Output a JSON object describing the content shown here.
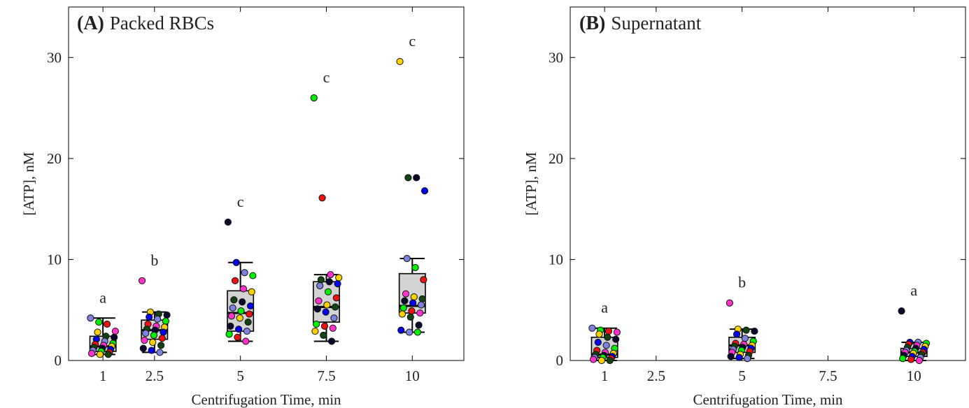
{
  "palette": [
    "#7c82dd",
    "#00ee00",
    "#ee1111",
    "#ff33cc",
    "#ffd000",
    "#114411",
    "#0a0a2e",
    "#0000ee"
  ],
  "chart_data": [
    {
      "type": "box-scatter",
      "panel_letter": "(A)",
      "title": "Packed RBCs",
      "xlabel": "Centrifugation Time, min",
      "ylabel": "[ATP], nM",
      "xticks": [
        "1",
        "2.5",
        "5",
        "7.5",
        "10"
      ],
      "yticks": [
        "0",
        "10",
        "20",
        "30"
      ],
      "xlim": [
        0,
        11.5
      ],
      "ylim": [
        0,
        35
      ],
      "groups": [
        {
          "x": 1,
          "label": "a",
          "box": {
            "whisker_low": 0.6,
            "q1": 0.9,
            "median": 1.4,
            "q3": 2.4,
            "whisker_high": 4.2
          },
          "points": [
            4.2,
            3.8,
            3.6,
            2.9,
            2.8,
            2.4,
            2.3,
            2.1,
            1.9,
            1.7,
            1.6,
            1.5,
            1.4,
            1.3,
            1.2,
            1.1,
            1.0,
            0.9,
            0.8,
            0.7,
            0.6,
            0.6
          ]
        },
        {
          "x": 2.5,
          "label": "b",
          "box": {
            "whisker_low": 0.8,
            "q1": 2.1,
            "median": 3.0,
            "q3": 4.0,
            "whisker_high": 4.8
          },
          "points": [
            7.9,
            4.8,
            4.6,
            4.5,
            4.3,
            4.1,
            3.9,
            3.6,
            3.4,
            3.3,
            3.1,
            3.0,
            2.8,
            2.7,
            2.5,
            2.2,
            2.0,
            1.8,
            1.5,
            1.2,
            1.0,
            0.8
          ]
        },
        {
          "x": 5,
          "label": "c",
          "box": {
            "whisker_low": 1.9,
            "q1": 2.9,
            "median": 4.7,
            "q3": 6.9,
            "whisker_high": 9.7
          },
          "points": [
            13.7,
            9.7,
            8.7,
            8.4,
            7.9,
            7.1,
            6.8,
            6.0,
            5.8,
            5.4,
            5.2,
            4.9,
            4.6,
            4.4,
            4.2,
            3.8,
            3.4,
            3.1,
            2.9,
            2.6,
            2.3,
            1.9
          ]
        },
        {
          "x": 7.5,
          "label": "c",
          "box": {
            "whisker_low": 1.9,
            "q1": 3.8,
            "median": 5.3,
            "q3": 7.8,
            "whisker_high": 8.5
          },
          "points": [
            26.0,
            16.1,
            8.5,
            8.2,
            8.0,
            7.8,
            7.6,
            7.4,
            6.8,
            6.2,
            5.9,
            5.5,
            5.3,
            5.1,
            4.8,
            4.2,
            3.6,
            3.4,
            3.2,
            2.9,
            2.5,
            1.9
          ]
        },
        {
          "x": 10,
          "label": "c",
          "box": {
            "whisker_low": 2.8,
            "q1": 4.7,
            "median": 5.4,
            "q3": 8.6,
            "whisker_high": 10.1
          },
          "points": [
            29.6,
            18.1,
            18.1,
            16.8,
            10.1,
            9.2,
            8.0,
            6.6,
            6.3,
            6.1,
            5.9,
            5.7,
            5.5,
            5.2,
            4.9,
            4.7,
            4.6,
            4.3,
            3.5,
            3.0,
            2.8,
            2.8
          ]
        }
      ]
    },
    {
      "type": "box-scatter",
      "panel_letter": "(B)",
      "title": "Supernatant",
      "xlabel": "Centrifugation Time, min",
      "ylabel": "[ATP], nM",
      "xticks": [
        "1",
        "2.5",
        "5",
        "7.5",
        "10"
      ],
      "yticks": [
        "0",
        "10",
        "20",
        "30"
      ],
      "xlim": [
        0,
        11.5
      ],
      "ylim": [
        0,
        35
      ],
      "groups": [
        {
          "x": 1,
          "label": "a",
          "box": {
            "whisker_low": 0.0,
            "q1": 0.3,
            "median": 0.6,
            "q3": 2.3,
            "whisker_high": 3.2
          },
          "points": [
            3.2,
            3.0,
            2.9,
            2.8,
            2.6,
            2.3,
            2.1,
            1.8,
            1.5,
            1.2,
            1.0,
            0.8,
            0.7,
            0.6,
            0.5,
            0.4,
            0.3,
            0.3,
            0.2,
            0.1,
            0.0,
            0.0
          ]
        },
        {
          "x": 5,
          "label": "b",
          "box": {
            "whisker_low": 0.2,
            "q1": 0.8,
            "median": 1.5,
            "q3": 2.3,
            "whisker_high": 3.1
          },
          "points": [
            5.7,
            3.1,
            3.0,
            2.9,
            2.6,
            2.2,
            1.9,
            1.7,
            1.6,
            1.5,
            1.4,
            1.3,
            1.2,
            1.1,
            1.0,
            0.9,
            0.8,
            0.6,
            0.5,
            0.4,
            0.3,
            0.2
          ]
        },
        {
          "x": 10,
          "label": "a",
          "box": {
            "whisker_low": 0.0,
            "q1": 0.4,
            "median": 0.8,
            "q3": 1.2,
            "whisker_high": 1.8
          },
          "points": [
            4.9,
            1.8,
            1.8,
            1.7,
            1.6,
            1.5,
            1.4,
            1.3,
            1.2,
            1.1,
            1.0,
            0.9,
            0.8,
            0.8,
            0.7,
            0.6,
            0.5,
            0.4,
            0.3,
            0.2,
            0.1,
            0.0
          ]
        }
      ]
    }
  ]
}
